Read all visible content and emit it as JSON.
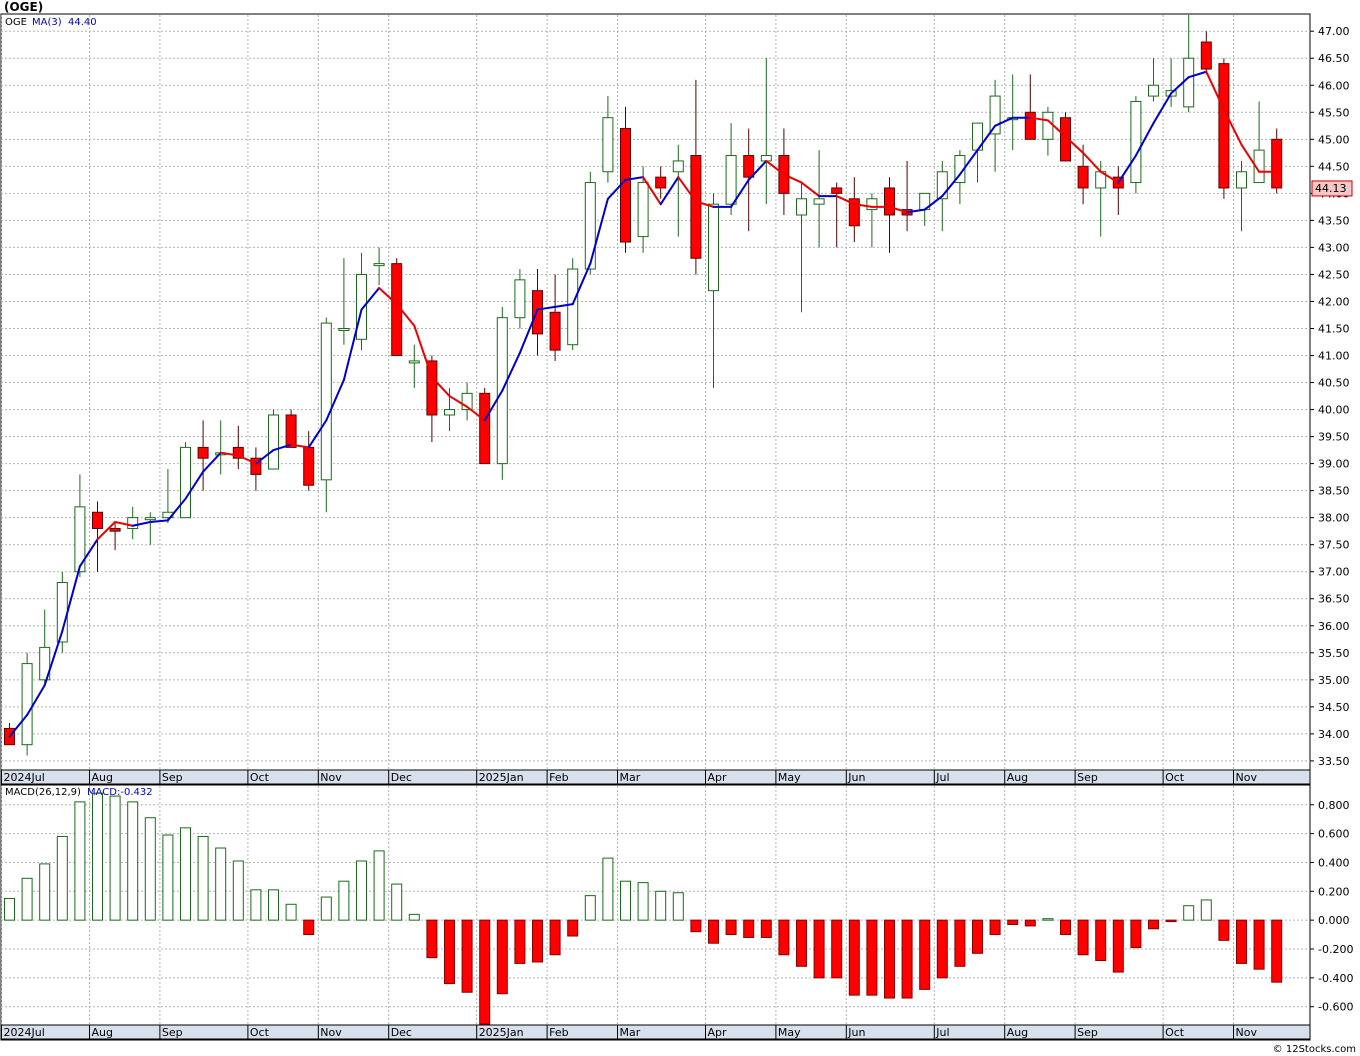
{
  "header": {
    "title": "(OGE)",
    "symbol": "OGE",
    "ma_label": "MA(3)",
    "ma_value": "44.40",
    "last_price": "44.13"
  },
  "macd_header": {
    "label": "MACD(26,12,9)",
    "value_label": "MACD:-0.432"
  },
  "footer": {
    "credit": "© 12Stocks.com"
  },
  "colors": {
    "up": "#1a6b1a",
    "down": "#ff0000",
    "ma_up": "#0000cc",
    "ma_down": "#ee0000",
    "grid": "#b4b4b4",
    "panel_border": "#000000",
    "axis_band": "#d8e0ec"
  },
  "chart_data": [
    {
      "type": "candlestick",
      "title": "(OGE)",
      "ylim": [
        33.35,
        47.3
      ],
      "y_ticks": [
        "47.00",
        "46.50",
        "46.00",
        "45.50",
        "45.00",
        "44.50",
        "44.00",
        "43.50",
        "43.00",
        "42.50",
        "42.00",
        "41.50",
        "41.00",
        "40.50",
        "40.00",
        "39.50",
        "39.00",
        "38.50",
        "38.00",
        "37.50",
        "37.00",
        "36.50",
        "36.00",
        "35.50",
        "35.00",
        "34.50",
        "34.00",
        "33.50"
      ],
      "month_labels": [
        {
          "label": "2024Jul",
          "index": 0
        },
        {
          "label": "Aug",
          "index": 5
        },
        {
          "label": "Sep",
          "index": 9
        },
        {
          "label": "Oct",
          "index": 14
        },
        {
          "label": "Nov",
          "index": 18
        },
        {
          "label": "Dec",
          "index": 22
        },
        {
          "label": "2025Jan",
          "index": 27
        },
        {
          "label": "Feb",
          "index": 31
        },
        {
          "label": "Mar",
          "index": 35
        },
        {
          "label": "Apr",
          "index": 40
        },
        {
          "label": "May",
          "index": 44
        },
        {
          "label": "Jun",
          "index": 48
        },
        {
          "label": "Jul",
          "index": 53
        },
        {
          "label": "Aug",
          "index": 57
        },
        {
          "label": "Sep",
          "index": 61
        },
        {
          "label": "Oct",
          "index": 66
        },
        {
          "label": "Nov",
          "index": 70
        }
      ],
      "candles": [
        {
          "o": 34.1,
          "h": 34.2,
          "l": 33.8,
          "c": 33.8
        },
        {
          "o": 33.8,
          "h": 35.5,
          "l": 33.6,
          "c": 35.3
        },
        {
          "o": 35.0,
          "h": 36.3,
          "l": 34.9,
          "c": 35.6
        },
        {
          "o": 35.7,
          "h": 37.0,
          "l": 35.5,
          "c": 36.8
        },
        {
          "o": 37.0,
          "h": 38.8,
          "l": 36.9,
          "c": 38.2
        },
        {
          "o": 38.1,
          "h": 38.3,
          "l": 37.0,
          "c": 37.8
        },
        {
          "o": 37.8,
          "h": 37.9,
          "l": 37.4,
          "c": 37.75
        },
        {
          "o": 37.8,
          "h": 38.2,
          "l": 37.6,
          "c": 38.0
        },
        {
          "o": 38.0,
          "h": 38.1,
          "l": 37.5,
          "c": 38.0
        },
        {
          "o": 38.0,
          "h": 38.9,
          "l": 37.9,
          "c": 38.1
        },
        {
          "o": 38.0,
          "h": 39.4,
          "l": 38.0,
          "c": 39.3
        },
        {
          "o": 39.3,
          "h": 39.8,
          "l": 38.5,
          "c": 39.1
        },
        {
          "o": 39.2,
          "h": 39.8,
          "l": 38.8,
          "c": 39.2
        },
        {
          "o": 39.3,
          "h": 39.7,
          "l": 38.9,
          "c": 39.1
        },
        {
          "o": 39.1,
          "h": 39.3,
          "l": 38.5,
          "c": 38.8
        },
        {
          "o": 38.9,
          "h": 40.0,
          "l": 38.9,
          "c": 39.9
        },
        {
          "o": 39.9,
          "h": 40.0,
          "l": 39.3,
          "c": 39.3
        },
        {
          "o": 39.3,
          "h": 39.6,
          "l": 38.5,
          "c": 38.6
        },
        {
          "o": 38.7,
          "h": 41.7,
          "l": 38.1,
          "c": 41.6
        },
        {
          "o": 41.5,
          "h": 42.8,
          "l": 41.2,
          "c": 41.5
        },
        {
          "o": 41.3,
          "h": 42.9,
          "l": 41.1,
          "c": 42.5
        },
        {
          "o": 42.7,
          "h": 43.0,
          "l": 42.3,
          "c": 42.7
        },
        {
          "o": 42.7,
          "h": 42.8,
          "l": 41.0,
          "c": 41.0
        },
        {
          "o": 40.9,
          "h": 41.2,
          "l": 40.4,
          "c": 40.9
        },
        {
          "o": 40.9,
          "h": 41.0,
          "l": 39.4,
          "c": 39.9
        },
        {
          "o": 39.9,
          "h": 40.4,
          "l": 39.6,
          "c": 40.0
        },
        {
          "o": 40.0,
          "h": 40.5,
          "l": 39.8,
          "c": 40.3
        },
        {
          "o": 40.3,
          "h": 40.4,
          "l": 39.0,
          "c": 39.0
        },
        {
          "o": 39.0,
          "h": 41.9,
          "l": 38.7,
          "c": 41.7
        },
        {
          "o": 41.7,
          "h": 42.6,
          "l": 41.5,
          "c": 42.4
        },
        {
          "o": 42.2,
          "h": 42.6,
          "l": 41.0,
          "c": 41.4
        },
        {
          "o": 41.8,
          "h": 42.5,
          "l": 40.9,
          "c": 41.1
        },
        {
          "o": 41.2,
          "h": 42.8,
          "l": 41.1,
          "c": 42.6
        },
        {
          "o": 42.6,
          "h": 44.4,
          "l": 42.5,
          "c": 44.2
        },
        {
          "o": 44.4,
          "h": 45.8,
          "l": 44.2,
          "c": 45.4
        },
        {
          "o": 45.2,
          "h": 45.6,
          "l": 42.9,
          "c": 43.1
        },
        {
          "o": 43.2,
          "h": 44.5,
          "l": 42.9,
          "c": 44.2
        },
        {
          "o": 44.3,
          "h": 44.5,
          "l": 43.9,
          "c": 44.1
        },
        {
          "o": 44.4,
          "h": 44.9,
          "l": 43.2,
          "c": 44.6
        },
        {
          "o": 44.7,
          "h": 46.1,
          "l": 42.5,
          "c": 42.8
        },
        {
          "o": 42.2,
          "h": 44.0,
          "l": 40.4,
          "c": 43.8
        },
        {
          "o": 43.8,
          "h": 45.3,
          "l": 43.6,
          "c": 44.7
        },
        {
          "o": 44.7,
          "h": 45.2,
          "l": 43.3,
          "c": 44.3
        },
        {
          "o": 44.6,
          "h": 46.5,
          "l": 43.8,
          "c": 44.7
        },
        {
          "o": 44.7,
          "h": 45.2,
          "l": 43.6,
          "c": 44.0
        },
        {
          "o": 43.6,
          "h": 44.2,
          "l": 41.8,
          "c": 43.9
        },
        {
          "o": 43.8,
          "h": 44.8,
          "l": 43.0,
          "c": 43.9
        },
        {
          "o": 44.1,
          "h": 44.2,
          "l": 43.0,
          "c": 44.0
        },
        {
          "o": 43.9,
          "h": 44.3,
          "l": 43.1,
          "c": 43.4
        },
        {
          "o": 43.7,
          "h": 44.0,
          "l": 43.0,
          "c": 43.9
        },
        {
          "o": 44.1,
          "h": 44.3,
          "l": 42.9,
          "c": 43.6
        },
        {
          "o": 43.7,
          "h": 44.6,
          "l": 43.3,
          "c": 43.6
        },
        {
          "o": 43.7,
          "h": 44.0,
          "l": 43.4,
          "c": 44.0
        },
        {
          "o": 43.9,
          "h": 44.6,
          "l": 43.3,
          "c": 44.4
        },
        {
          "o": 44.2,
          "h": 44.8,
          "l": 43.8,
          "c": 44.7
        },
        {
          "o": 44.8,
          "h": 45.3,
          "l": 44.2,
          "c": 45.3
        },
        {
          "o": 45.1,
          "h": 46.1,
          "l": 44.4,
          "c": 45.8
        },
        {
          "o": 45.4,
          "h": 46.2,
          "l": 44.8,
          "c": 45.4
        },
        {
          "o": 45.5,
          "h": 46.2,
          "l": 45.0,
          "c": 45.0
        },
        {
          "o": 45.0,
          "h": 45.6,
          "l": 44.7,
          "c": 45.5
        },
        {
          "o": 45.4,
          "h": 45.5,
          "l": 44.6,
          "c": 44.6
        },
        {
          "o": 44.5,
          "h": 44.9,
          "l": 43.8,
          "c": 44.1
        },
        {
          "o": 44.1,
          "h": 44.6,
          "l": 43.2,
          "c": 44.4
        },
        {
          "o": 44.3,
          "h": 44.5,
          "l": 43.6,
          "c": 44.1
        },
        {
          "o": 44.2,
          "h": 45.8,
          "l": 44.0,
          "c": 45.7
        },
        {
          "o": 45.8,
          "h": 46.5,
          "l": 45.7,
          "c": 46.0
        },
        {
          "o": 45.8,
          "h": 46.5,
          "l": 45.6,
          "c": 45.9
        },
        {
          "o": 45.6,
          "h": 47.3,
          "l": 45.5,
          "c": 46.5
        },
        {
          "o": 46.8,
          "h": 47.0,
          "l": 46.2,
          "c": 46.3
        },
        {
          "o": 46.4,
          "h": 46.5,
          "l": 43.9,
          "c": 44.1
        },
        {
          "o": 44.1,
          "h": 44.6,
          "l": 43.3,
          "c": 44.4
        },
        {
          "o": 44.2,
          "h": 45.7,
          "l": 44.2,
          "c": 44.8
        },
        {
          "o": 45.0,
          "h": 45.2,
          "l": 44.0,
          "c": 44.1
        }
      ],
      "ma3": [
        33.95,
        34.35,
        34.9,
        35.9,
        37.1,
        37.6,
        37.92,
        37.85,
        37.92,
        37.95,
        38.35,
        38.85,
        39.2,
        39.15,
        39.0,
        39.25,
        39.35,
        39.3,
        39.8,
        40.55,
        41.85,
        42.25,
        41.95,
        41.55,
        40.6,
        40.25,
        40.05,
        39.8,
        40.35,
        41.05,
        41.85,
        41.9,
        41.95,
        42.7,
        43.9,
        44.25,
        44.3,
        43.8,
        44.3,
        43.85,
        43.75,
        43.75,
        44.25,
        44.6,
        44.35,
        44.2,
        43.95,
        43.95,
        43.8,
        43.75,
        43.75,
        43.65,
        43.7,
        43.95,
        44.35,
        44.8,
        45.25,
        45.4,
        45.4,
        45.35,
        45.05,
        44.75,
        44.4,
        44.2,
        44.7,
        45.3,
        45.85,
        46.15,
        46.25,
        45.55,
        44.9,
        44.4,
        44.4
      ],
      "ma_direction": [
        "up",
        "up",
        "up",
        "up",
        "up",
        "up",
        "down",
        "down",
        "up",
        "up",
        "up",
        "up",
        "up",
        "down",
        "down",
        "up",
        "up",
        "down",
        "up",
        "up",
        "up",
        "up",
        "down",
        "down",
        "down",
        "down",
        "down",
        "down",
        "up",
        "up",
        "up",
        "up",
        "up",
        "up",
        "up",
        "up",
        "up",
        "down",
        "up",
        "down",
        "down",
        "up",
        "up",
        "up",
        "down",
        "down",
        "down",
        "up",
        "down",
        "down",
        "down",
        "down",
        "up",
        "up",
        "up",
        "up",
        "up",
        "up",
        "up",
        "down",
        "down",
        "down",
        "down",
        "down",
        "up",
        "up",
        "up",
        "up",
        "up",
        "down",
        "down",
        "down",
        "down"
      ]
    },
    {
      "type": "bar",
      "title": "MACD(26,12,9)",
      "ylim": [
        -0.72,
        0.93
      ],
      "y_ticks": [
        "0.800",
        "0.600",
        "0.400",
        "0.200",
        "0.000",
        "-0.200",
        "-0.400",
        "-0.600"
      ],
      "values": [
        0.15,
        0.29,
        0.39,
        0.58,
        0.82,
        0.88,
        0.86,
        0.82,
        0.71,
        0.59,
        0.64,
        0.58,
        0.5,
        0.41,
        0.21,
        0.21,
        0.11,
        -0.1,
        0.16,
        0.27,
        0.41,
        0.48,
        0.25,
        0.04,
        -0.26,
        -0.44,
        -0.5,
        -0.72,
        -0.51,
        -0.3,
        -0.29,
        -0.24,
        -0.11,
        0.17,
        0.43,
        0.27,
        0.26,
        0.2,
        0.19,
        -0.08,
        -0.16,
        -0.1,
        -0.12,
        -0.12,
        -0.24,
        -0.32,
        -0.4,
        -0.4,
        -0.52,
        -0.52,
        -0.54,
        -0.54,
        -0.48,
        -0.4,
        -0.32,
        -0.23,
        -0.1,
        -0.03,
        -0.04,
        0.01,
        -0.1,
        -0.24,
        -0.28,
        -0.36,
        -0.19,
        -0.06,
        -0.01,
        0.1,
        0.14,
        -0.14,
        -0.3,
        -0.34,
        -0.43
      ]
    }
  ]
}
